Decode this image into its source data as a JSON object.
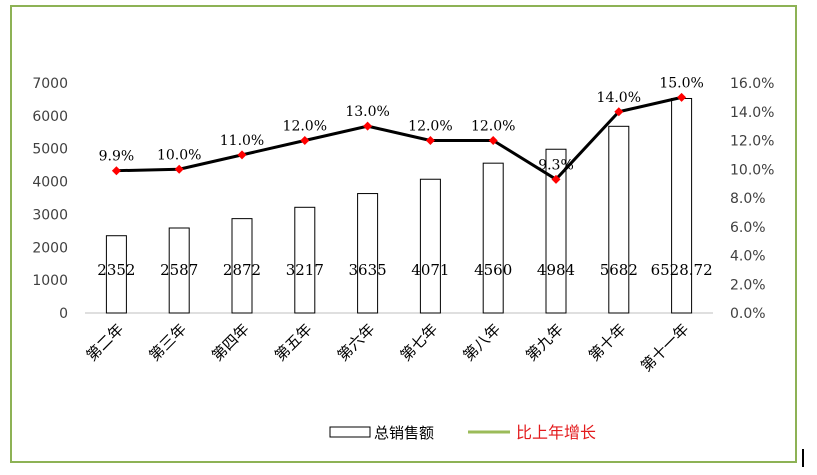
{
  "chart_data": {
    "type": "bar+line",
    "categories": [
      "第二年",
      "第三年",
      "第四年",
      "第五年",
      "第六年",
      "第七年",
      "第八年",
      "第九年",
      "第十年",
      "第十一年"
    ],
    "series": [
      {
        "name": "总销售额",
        "type": "bar",
        "axis": "left",
        "values": [
          2352,
          2587,
          2872,
          3217,
          3635,
          4071,
          4560,
          4984,
          5682,
          6528.72
        ],
        "labels": [
          "2352",
          "2587",
          "2872",
          "3217",
          "3635",
          "4071",
          "4560",
          "4984",
          "5682",
          "6528.72"
        ]
      },
      {
        "name": "比上年增长",
        "type": "line",
        "axis": "right",
        "values": [
          9.9,
          10.0,
          11.0,
          12.0,
          13.0,
          12.0,
          12.0,
          9.3,
          14.0,
          15.0
        ],
        "labels": [
          "9.9%",
          "10.0%",
          "11.0%",
          "12.0%",
          "13.0%",
          "12.0%",
          "12.0%",
          "9.3%",
          "14.0%",
          "15.0%"
        ]
      }
    ],
    "left_axis": {
      "ylim": [
        0,
        7000
      ],
      "ticks": [
        "0",
        "1000",
        "2000",
        "3000",
        "4000",
        "5000",
        "6000",
        "7000"
      ]
    },
    "right_axis": {
      "ylim": [
        0,
        16
      ],
      "ticks": [
        "0.0%",
        "2.0%",
        "4.0%",
        "6.0%",
        "8.0%",
        "10.0%",
        "12.0%",
        "14.0%",
        "16.0%"
      ]
    },
    "legend": {
      "position": "bottom"
    },
    "grid": false,
    "colors": {
      "bar_fill": "#ffffff",
      "bar_stroke": "#000000",
      "line": "#000000",
      "marker": "#ff0000",
      "legend_line": "#9bbb59",
      "legend_red_text": "#e31a1c",
      "frame": "#8db255"
    }
  }
}
